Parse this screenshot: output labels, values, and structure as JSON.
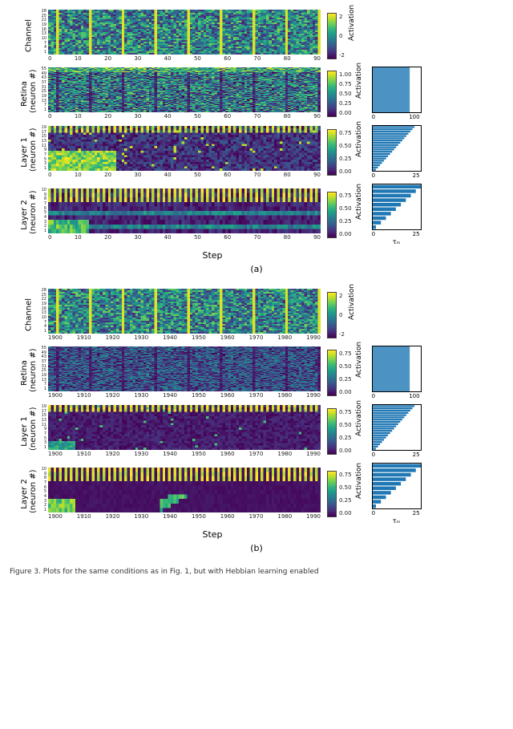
{
  "cmap": "viridis",
  "viridis_stops": [
    "#440154",
    "#482878",
    "#3e4a89",
    "#31688e",
    "#26828e",
    "#1f9e89",
    "#35b779",
    "#6ece58",
    "#b5de2b",
    "#fde725"
  ],
  "bar_color": "#1f77b4",
  "bar_border": "#000000",
  "group_a": {
    "x_start": 0,
    "x_end": 100,
    "x_step": 10,
    "xlabel": "Step",
    "caption": "(a)",
    "panels": [
      {
        "ylabel": "Channel",
        "rows": 28,
        "cols": 100,
        "heatmap_w": 340,
        "heatmap_h": 56,
        "vmin": -3,
        "vmax": 3,
        "cbar_ticks": [
          "2",
          "0",
          "-2"
        ],
        "cbar_label": "Activation",
        "yticks": [
          "1",
          "4",
          "7",
          "10",
          "13",
          "16",
          "19",
          "22",
          "25",
          "28"
        ],
        "pattern": "noise_with_stripes",
        "stripe_period": 12,
        "bar": null
      },
      {
        "ylabel": "Retina\n(neuron #)",
        "rows": 56,
        "cols": 100,
        "heatmap_w": 340,
        "heatmap_h": 56,
        "vmin": 0,
        "vmax": 1,
        "cbar_ticks": [
          "1.00",
          "0.75",
          "0.50",
          "0.25",
          "0.00"
        ],
        "cbar_label": "Activation",
        "yticks": [
          "1",
          "7",
          "13",
          "19",
          "25",
          "31",
          "37",
          "43",
          "49",
          "55"
        ],
        "pattern": "noise_fine",
        "stripe_period": 12,
        "bar": {
          "n": 56,
          "max": 130,
          "xticks": [
            "0",
            "100"
          ],
          "xlabel": "",
          "values_formula": "uniform_100"
        }
      },
      {
        "ylabel": "Layer 1\n(neuron #)",
        "rows": 20,
        "cols": 100,
        "heatmap_w": 340,
        "heatmap_h": 56,
        "vmin": 0,
        "vmax": 1,
        "cbar_ticks": [
          "0.75",
          "0.50",
          "0.25",
          "0.00"
        ],
        "cbar_label": "Activation",
        "yticks": [
          "1",
          "3",
          "5",
          "7",
          "9",
          "11",
          "13",
          "15",
          "17",
          "19"
        ],
        "pattern": "decay_top",
        "bar": {
          "n": 20,
          "max": 30,
          "xticks": [
            "0",
            "25"
          ],
          "xlabel": "",
          "values_formula": "increasing_25"
        }
      },
      {
        "ylabel": "Layer 2\n(neuron #)",
        "rows": 10,
        "cols": 100,
        "heatmap_w": 340,
        "heatmap_h": 56,
        "vmin": 0,
        "vmax": 1,
        "cbar_ticks": [
          "0.75",
          "0.50",
          "0.25",
          "0.00"
        ],
        "cbar_label": "Activation",
        "yticks": [
          "1",
          "2",
          "3",
          "4",
          "5",
          "6",
          "7",
          "8",
          "9",
          "10"
        ],
        "pattern": "stripes_bottom",
        "bar": {
          "n": 10,
          "max": 30,
          "xticks": [
            "0",
            "25"
          ],
          "xlabel": "τₘ",
          "values_formula": "increasing_30"
        }
      }
    ]
  },
  "group_b": {
    "x_start": 1900,
    "x_end": 2000,
    "x_step": 10,
    "xlabel": "Step",
    "caption": "(b)",
    "panels": [
      {
        "ylabel": "Channel",
        "rows": 28,
        "cols": 100,
        "heatmap_w": 340,
        "heatmap_h": 56,
        "vmin": -3,
        "vmax": 3,
        "cbar_ticks": [
          "2",
          "0",
          "-2"
        ],
        "cbar_label": "Activation",
        "yticks": [
          "1",
          "4",
          "7",
          "10",
          "13",
          "16",
          "19",
          "22",
          "25",
          "28"
        ],
        "pattern": "noise_with_stripes",
        "stripe_period": 12,
        "bar": null
      },
      {
        "ylabel": "Retina\n(neuron #)",
        "rows": 56,
        "cols": 100,
        "heatmap_w": 340,
        "heatmap_h": 56,
        "vmin": 0,
        "vmax": 1,
        "cbar_ticks": [
          "0.75",
          "0.50",
          "0.25",
          "0.00"
        ],
        "cbar_label": "Activation",
        "yticks": [
          "1",
          "7",
          "13",
          "19",
          "25",
          "31",
          "37",
          "43",
          "49",
          "55"
        ],
        "pattern": "noise_fine_dark",
        "stripe_period": 12,
        "bar": {
          "n": 56,
          "max": 130,
          "xticks": [
            "0",
            "100"
          ],
          "xlabel": "",
          "values_formula": "uniform_100"
        }
      },
      {
        "ylabel": "Layer 1\n(neuron #)",
        "rows": 20,
        "cols": 100,
        "heatmap_w": 340,
        "heatmap_h": 56,
        "vmin": 0,
        "vmax": 1,
        "cbar_ticks": [
          "0.75",
          "0.50",
          "0.25",
          "0.00"
        ],
        "cbar_label": "Activation",
        "yticks": [
          "1",
          "3",
          "5",
          "7",
          "9",
          "11",
          "13",
          "15",
          "17",
          "19"
        ],
        "pattern": "sparse_bottom_stripes",
        "bar": {
          "n": 20,
          "max": 30,
          "xticks": [
            "0",
            "25"
          ],
          "xlabel": "",
          "values_formula": "increasing_25"
        }
      },
      {
        "ylabel": "Layer 2\n(neuron #)",
        "rows": 10,
        "cols": 100,
        "heatmap_w": 340,
        "heatmap_h": 56,
        "vmin": 0,
        "vmax": 1,
        "cbar_ticks": [
          "0.75",
          "0.50",
          "0.25",
          "0.00"
        ],
        "cbar_label": "Activation",
        "yticks": [
          "1",
          "2",
          "3",
          "4",
          "5",
          "6",
          "7",
          "8",
          "9",
          "10"
        ],
        "pattern": "diagonal_sparse",
        "bar": {
          "n": 10,
          "max": 30,
          "xticks": [
            "0",
            "25"
          ],
          "xlabel": "τₘ",
          "values_formula": "increasing_30"
        }
      }
    ]
  },
  "figure_caption_prefix": "Figure 3. Plots for the same conditions as in Fig. 1, but with Hebbian learning enabled"
}
